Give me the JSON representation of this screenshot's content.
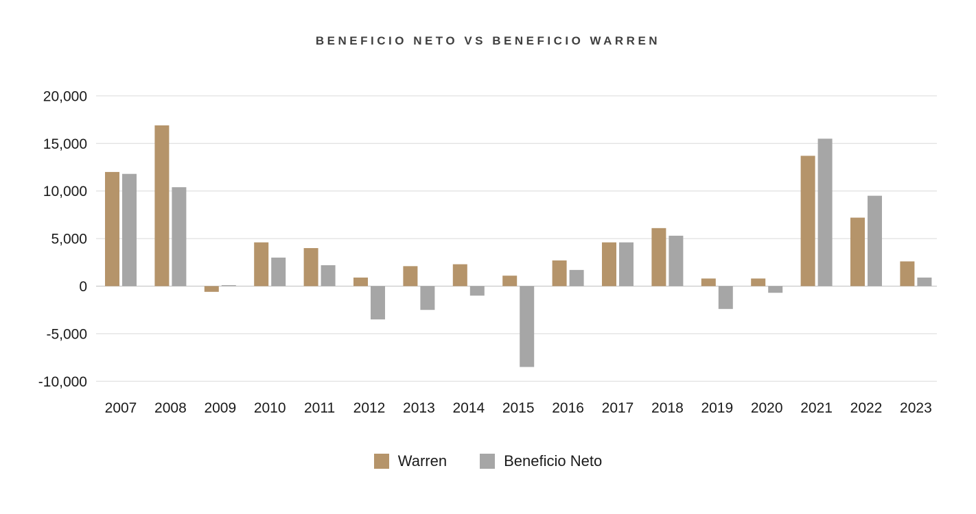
{
  "chart_data": {
    "type": "bar",
    "title": "BENEFICIO NETO VS BENEFICIO WARREN",
    "categories": [
      "2007",
      "2008",
      "2009",
      "2010",
      "2011",
      "2012",
      "2013",
      "2014",
      "2015",
      "2016",
      "2017",
      "2018",
      "2019",
      "2020",
      "2021",
      "2022",
      "2023"
    ],
    "series": [
      {
        "name": "Warren",
        "color": "#B5946A",
        "values": [
          12000,
          16900,
          -600,
          4600,
          4000,
          900,
          2100,
          2300,
          1100,
          2700,
          4600,
          6100,
          800,
          800,
          13700,
          7200,
          2600
        ]
      },
      {
        "name": "Beneficio Neto",
        "color": "#A6A6A6",
        "values": [
          11800,
          10400,
          100,
          3000,
          2200,
          -3500,
          -2500,
          -1000,
          -8500,
          1700,
          4600,
          5300,
          -2400,
          -700,
          15500,
          9500,
          900
        ]
      }
    ],
    "ylim": [
      -10000,
      20000
    ],
    "yticks": [
      20000,
      15000,
      10000,
      5000,
      0,
      -5000,
      -10000
    ],
    "ytick_labels": [
      "20,000",
      "15,000",
      "10,000",
      "5,000",
      "0",
      "-5,000",
      "-10,000"
    ],
    "xlabel": "",
    "ylabel": "",
    "grid": "horizontal",
    "legend_position": "bottom",
    "colors": {
      "background": "#FFFFFF",
      "gridline": "#D9D9D9",
      "zero_line": "#BFBFBF",
      "axis_text": "#1A1A1A",
      "title_text": "#3F3F3F"
    }
  }
}
